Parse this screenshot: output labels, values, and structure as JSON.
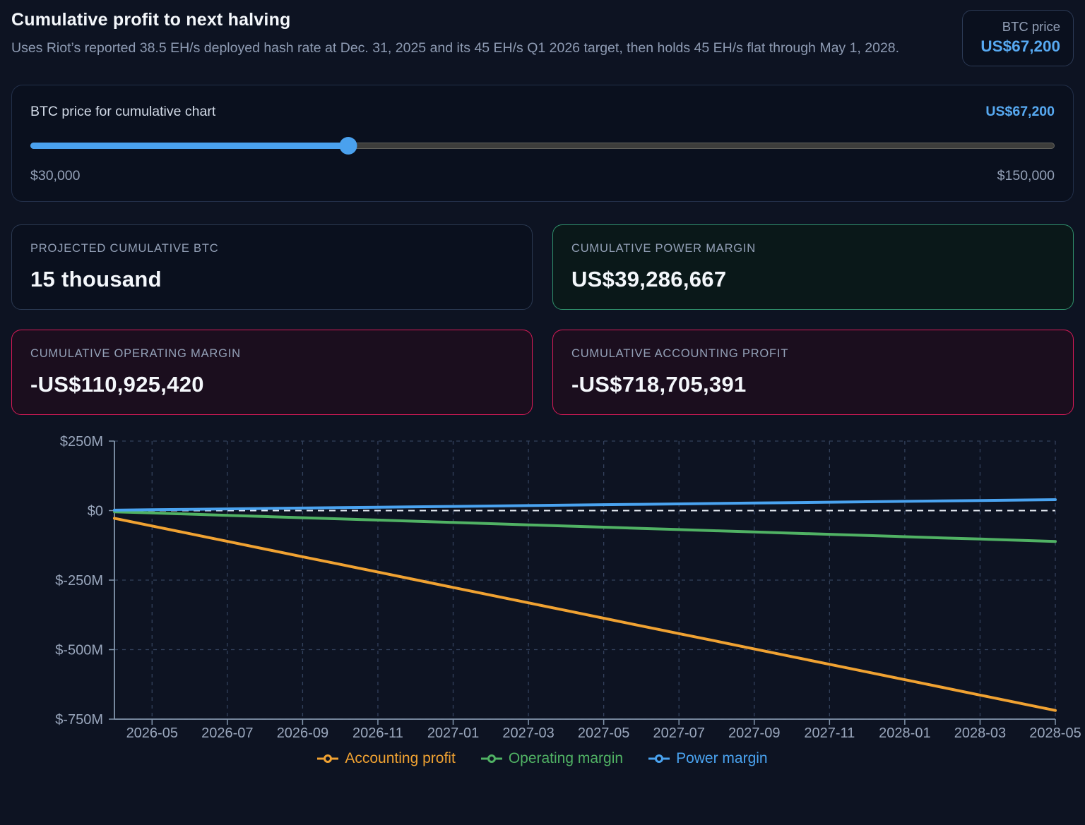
{
  "header": {
    "title": "Cumulative profit to next halving",
    "subtitle": "Uses Riot’s reported 38.5 EH/s deployed hash rate at Dec. 31, 2025 and its 45 EH/s Q1 2026 target, then holds 45 EH/s flat through May 1, 2028.",
    "btc_badge": {
      "label": "BTC price",
      "value": "US$67,200"
    }
  },
  "slider": {
    "label": "BTC price for cumulative chart",
    "value_display": "US$67,200",
    "min_label": "$30,000",
    "max_label": "$150,000",
    "min": 30000,
    "max": 150000,
    "value": 67200
  },
  "stats": [
    {
      "label": "PROJECTED CUMULATIVE BTC",
      "value": "15 thousand",
      "state": "neutral"
    },
    {
      "label": "CUMULATIVE POWER MARGIN",
      "value": "US$39,286,667",
      "state": "positive"
    },
    {
      "label": "CUMULATIVE OPERATING MARGIN",
      "value": "-US$110,925,420",
      "state": "negative"
    },
    {
      "label": "CUMULATIVE ACCOUNTING PROFIT",
      "value": "-US$718,705,391",
      "state": "negative"
    }
  ],
  "chart_data": {
    "type": "line",
    "unit": "USD millions",
    "x": [
      "2026-04",
      "2026-05",
      "2026-06",
      "2026-07",
      "2026-08",
      "2026-09",
      "2026-10",
      "2026-11",
      "2026-12",
      "2027-01",
      "2027-02",
      "2027-03",
      "2027-04",
      "2027-05",
      "2027-06",
      "2027-07",
      "2027-08",
      "2027-09",
      "2027-10",
      "2027-11",
      "2027-12",
      "2028-01",
      "2028-02",
      "2028-03",
      "2028-04",
      "2028-05"
    ],
    "x_tick_labels": [
      "2026-05",
      "2026-07",
      "2026-09",
      "2026-11",
      "2027-01",
      "2027-03",
      "2027-05",
      "2027-07",
      "2027-09",
      "2027-11",
      "2028-01",
      "2028-03",
      "2028-05"
    ],
    "y_tick_values": [
      250,
      0,
      -250,
      -500,
      -750
    ],
    "y_tick_labels": [
      "$250M",
      "$0",
      "$-250M",
      "$-500M",
      "$-750M"
    ],
    "ylim": [
      -750,
      250
    ],
    "grid": "dashed",
    "zero_reference_line": true,
    "legend_position": "bottom",
    "series": [
      {
        "name": "Accounting profit",
        "color": "#f0a232",
        "values": [
          -27.6,
          -55.3,
          -82.9,
          -110.6,
          -138.2,
          -165.9,
          -193.5,
          -221.1,
          -248.8,
          -276.4,
          -304.1,
          -331.7,
          -359.4,
          -387.0,
          -414.6,
          -442.3,
          -469.9,
          -497.6,
          -525.2,
          -552.9,
          -580.5,
          -608.1,
          -635.8,
          -663.4,
          -691.1,
          -718.7
        ]
      },
      {
        "name": "Operating margin",
        "color": "#50b264",
        "values": [
          -4.3,
          -8.5,
          -12.8,
          -17.1,
          -21.3,
          -25.6,
          -29.9,
          -34.1,
          -38.4,
          -42.7,
          -46.9,
          -51.2,
          -55.5,
          -59.7,
          -64.0,
          -68.3,
          -72.5,
          -76.8,
          -81.1,
          -85.3,
          -89.6,
          -93.9,
          -98.1,
          -102.4,
          -106.7,
          -110.9
        ]
      },
      {
        "name": "Power margin",
        "color": "#4aa3f0",
        "values": [
          1.5,
          3.0,
          4.5,
          6.0,
          7.6,
          9.1,
          10.6,
          12.1,
          13.6,
          15.1,
          16.6,
          18.1,
          19.6,
          21.2,
          22.7,
          24.2,
          25.7,
          27.2,
          28.7,
          30.2,
          31.7,
          33.2,
          34.7,
          36.3,
          37.8,
          39.3
        ]
      }
    ]
  },
  "colors": {
    "background": "#0d1322",
    "card_background": "#0a101e",
    "accent_blue": "#57a9f1",
    "positive_border": "#2f8f6b",
    "negative_border": "#d61a57",
    "axis": "#8396ad",
    "grid": "#33415c",
    "tick_label": "#9aa7bd",
    "zero_line": "#e9eef6"
  }
}
